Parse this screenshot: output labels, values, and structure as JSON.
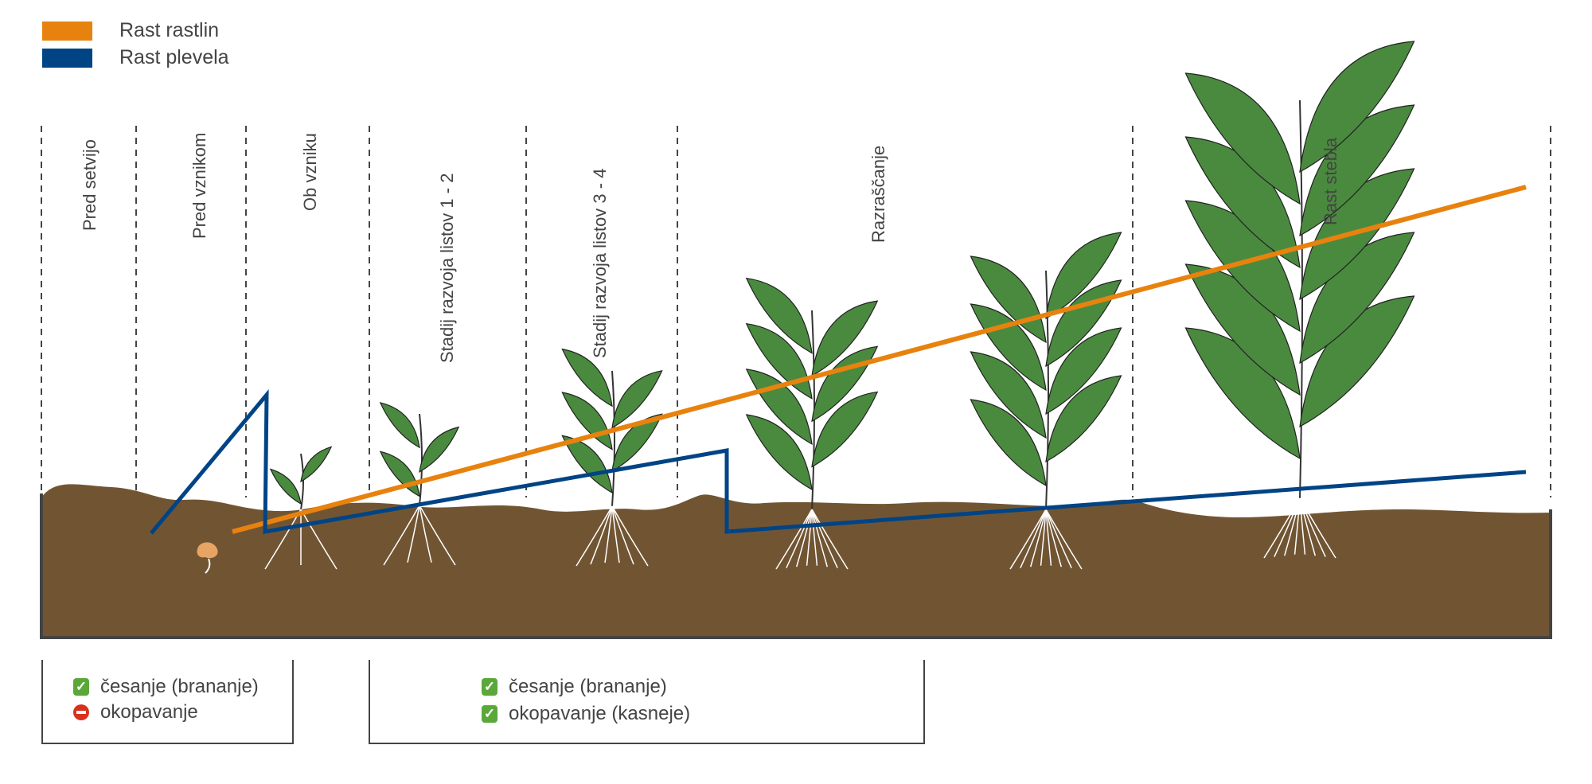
{
  "legend": [
    {
      "label": "Rast rastlin",
      "color": "#e8820e"
    },
    {
      "label": "Rast plevela",
      "color": "#004485"
    }
  ],
  "stages": [
    "Pred setvijo",
    "Pred vznikom",
    "Ob vzniku",
    "Stadij razvoja listov 1 - 2",
    "Stadij razvoja listov 3 - 4",
    "Razraščanje",
    "Rast stebla"
  ],
  "colors": {
    "soil": "#715533",
    "leaf": "#4a8a3f",
    "outline": "#444444",
    "seed": "#e7a462"
  },
  "boxes": [
    {
      "items": [
        {
          "icon": "check-icon",
          "label": "česanje (brananje)"
        },
        {
          "icon": "no-entry-icon",
          "label": "okopavanje"
        }
      ]
    },
    {
      "items": [
        {
          "icon": "check-icon",
          "label": "česanje (brananje)"
        },
        {
          "icon": "check-icon",
          "label": "okopavanje (kasneje)"
        }
      ]
    }
  ]
}
